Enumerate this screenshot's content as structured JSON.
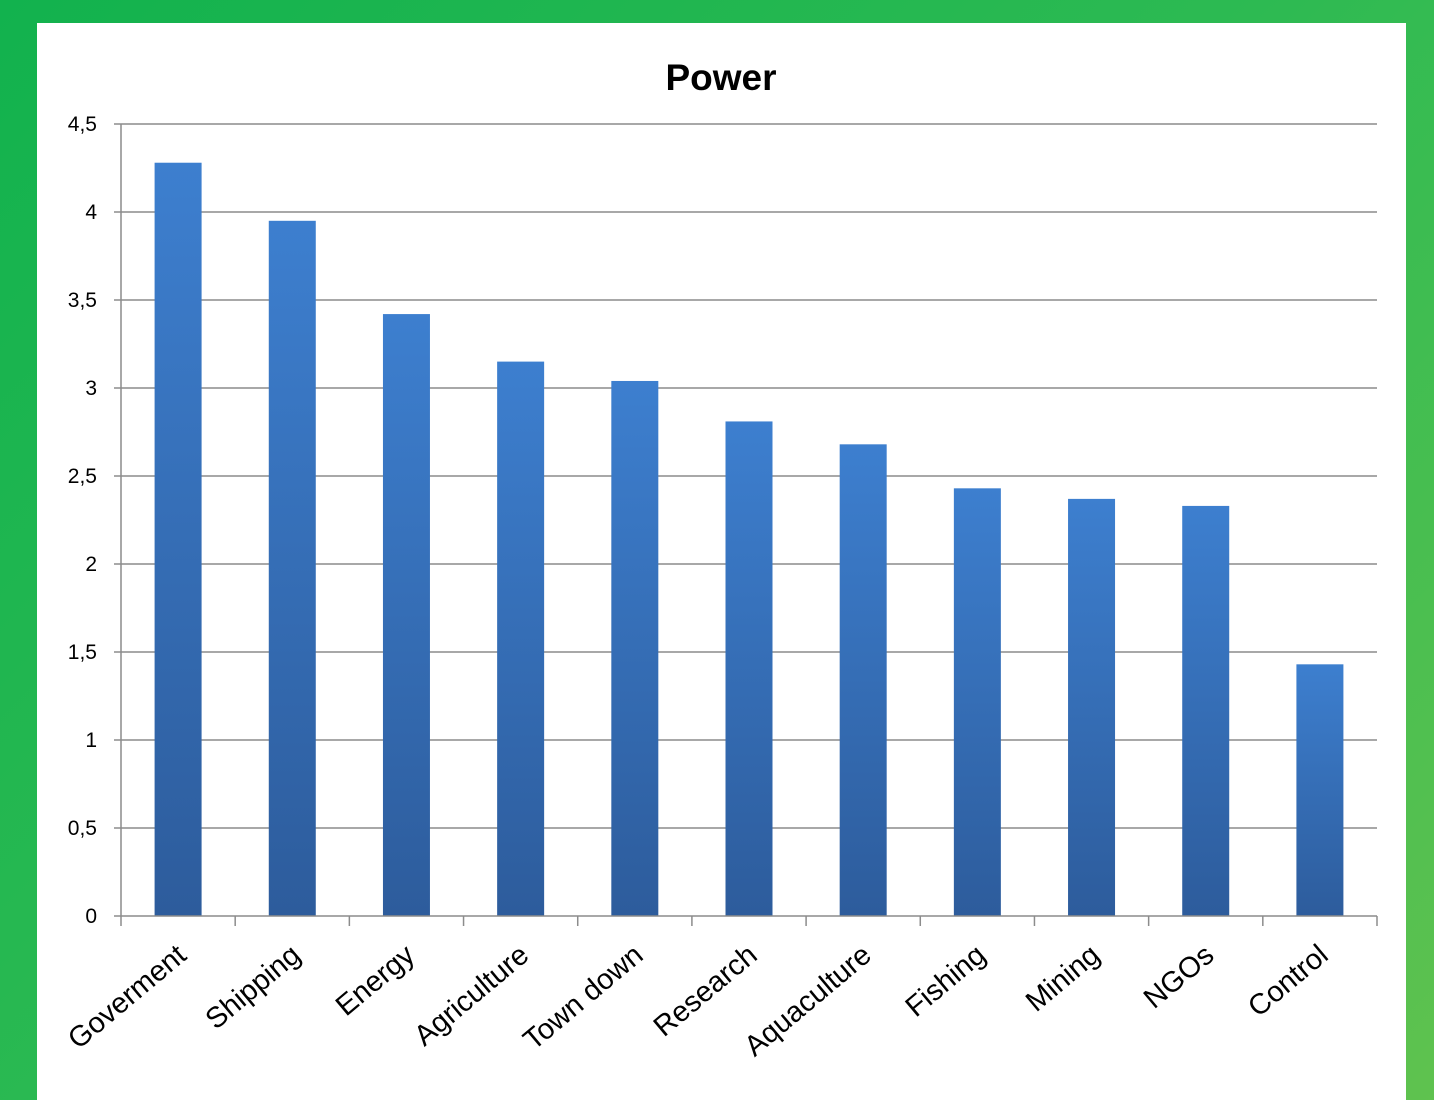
{
  "chart_data": {
    "type": "bar",
    "title": "Power",
    "xlabel": "",
    "ylabel": "",
    "categories": [
      "Goverment",
      "Shipping",
      "Energy",
      "Agriculture",
      "Town down",
      "Research",
      "Aquaculture",
      "Fishing",
      "Mining",
      "NGOs",
      "Control"
    ],
    "values": [
      4.28,
      3.95,
      3.42,
      3.15,
      3.04,
      2.81,
      2.68,
      2.43,
      2.37,
      2.33,
      1.43
    ],
    "ylim": [
      0,
      4.5
    ],
    "yticks": [
      0,
      0.5,
      1,
      1.5,
      2,
      2.5,
      3,
      3.5,
      4,
      4.5
    ],
    "ytick_labels": [
      "0",
      "0,5",
      "1",
      "1,5",
      "2",
      "2,5",
      "3",
      "3,5",
      "4",
      "4,5"
    ],
    "grid": true,
    "legend": "none",
    "bar_color_top": "#3d7fcf",
    "bar_color_bottom": "#2d5c9c",
    "gridline_color": "#8c8c8c",
    "background_color": "#ffffff",
    "frame_color": "#1db44f"
  }
}
